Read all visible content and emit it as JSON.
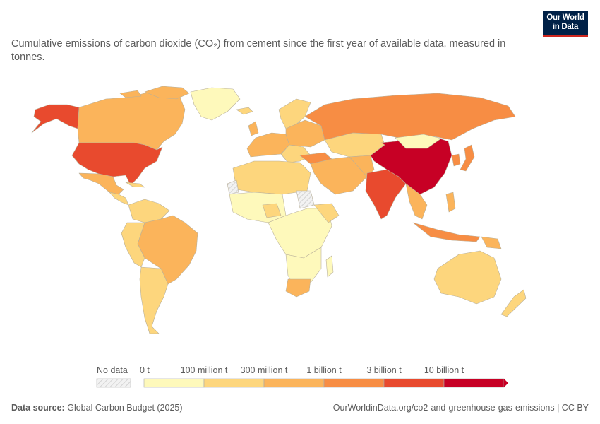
{
  "header": {
    "logo_line1": "Our World",
    "logo_line2": "in Data",
    "subtitle": "Cumulative emissions of carbon dioxide (CO₂) from cement since the first year of available data, measured in tonnes."
  },
  "legend": {
    "no_data_label": "No data",
    "bins": [
      {
        "label": "0 t",
        "color": "#fef9bb"
      },
      {
        "label": "100 million t",
        "color": "#fdd67d"
      },
      {
        "label": "300 million t",
        "color": "#fbb45b"
      },
      {
        "label": "1 billion t",
        "color": "#f78d44"
      },
      {
        "label": "3 billion t",
        "color": "#e84a2e"
      },
      {
        "label": "10 billion t",
        "color": "#c70025"
      }
    ]
  },
  "footer": {
    "source_label": "Data source:",
    "source_value": "Global Carbon Budget (2025)",
    "url": "OurWorldinData.org/co2-and-greenhouse-gas-emissions | CC BY"
  },
  "map_data": {
    "regions": [
      {
        "name": "United States",
        "level": 4
      },
      {
        "name": "Canada",
        "level": 2
      },
      {
        "name": "Mexico",
        "level": 2
      },
      {
        "name": "Brazil",
        "level": 2
      },
      {
        "name": "China",
        "level": 5
      },
      {
        "name": "India",
        "level": 4
      },
      {
        "name": "Russia",
        "level": 3
      },
      {
        "name": "Japan",
        "level": 3
      },
      {
        "name": "Australia",
        "level": 1
      }
    ]
  }
}
